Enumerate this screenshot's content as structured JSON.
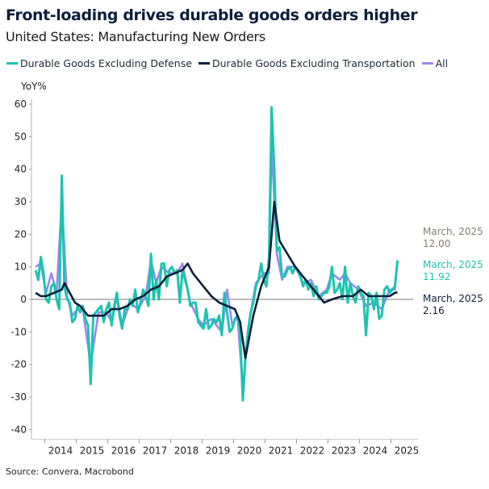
{
  "title": "Front-loading drives durable goods orders higher",
  "subtitle": "United States: Manufacturing New Orders",
  "source": "Source: Convera, Macrobond",
  "chart_data": {
    "type": "line",
    "ylabel": "YoY%",
    "ylim": [
      -40,
      60
    ],
    "yticks": [
      -40,
      -30,
      -20,
      -10,
      0,
      10,
      20,
      30,
      40,
      50,
      60
    ],
    "xticks": [
      "2014",
      "2015",
      "2016",
      "2017",
      "2018",
      "2019",
      "2020",
      "2021",
      "2022",
      "2023",
      "2024",
      "2025"
    ],
    "grid": false,
    "legend_position": "top-left",
    "series": [
      {
        "name": "Durable Goods Excluding Defense",
        "color": "#1cc4b0",
        "points": [
          [
            "2013-09",
            9
          ],
          [
            "2013-10",
            6
          ],
          [
            "2013-11",
            13
          ],
          [
            "2013-12",
            8
          ],
          [
            "2014-01",
            0
          ],
          [
            "2014-02",
            -1
          ],
          [
            "2014-03",
            4
          ],
          [
            "2014-04",
            5
          ],
          [
            "2014-05",
            0
          ],
          [
            "2014-06",
            -3
          ],
          [
            "2014-07",
            38
          ],
          [
            "2014-08",
            4
          ],
          [
            "2014-09",
            0
          ],
          [
            "2014-10",
            -1
          ],
          [
            "2014-11",
            -7
          ],
          [
            "2014-12",
            -6
          ],
          [
            "2015-01",
            -2
          ],
          [
            "2015-02",
            -4
          ],
          [
            "2015-03",
            -2
          ],
          [
            "2015-04",
            -6
          ],
          [
            "2015-05",
            -8
          ],
          [
            "2015-06",
            -26
          ],
          [
            "2015-07",
            -5
          ],
          [
            "2015-08",
            -4
          ],
          [
            "2015-09",
            -3
          ],
          [
            "2015-10",
            -2
          ],
          [
            "2015-11",
            -7
          ],
          [
            "2015-12",
            -3
          ],
          [
            "2016-01",
            -1
          ],
          [
            "2016-02",
            -8
          ],
          [
            "2016-03",
            -2
          ],
          [
            "2016-04",
            2
          ],
          [
            "2016-05",
            -5
          ],
          [
            "2016-06",
            -9
          ],
          [
            "2016-07",
            -3
          ],
          [
            "2016-08",
            -3
          ],
          [
            "2016-09",
            0
          ],
          [
            "2016-10",
            -2
          ],
          [
            "2016-11",
            3
          ],
          [
            "2016-12",
            -4
          ],
          [
            "2017-01",
            -1
          ],
          [
            "2017-02",
            3
          ],
          [
            "2017-03",
            1
          ],
          [
            "2017-04",
            -2
          ],
          [
            "2017-05",
            14
          ],
          [
            "2017-06",
            0
          ],
          [
            "2017-07",
            6
          ],
          [
            "2017-08",
            0
          ],
          [
            "2017-09",
            11
          ],
          [
            "2017-10",
            11
          ],
          [
            "2017-11",
            4
          ],
          [
            "2017-12",
            9
          ],
          [
            "2018-01",
            10
          ],
          [
            "2018-02",
            8
          ],
          [
            "2018-03",
            9
          ],
          [
            "2018-04",
            -1
          ],
          [
            "2018-05",
            9
          ],
          [
            "2018-06",
            6
          ],
          [
            "2018-07",
            3
          ],
          [
            "2018-08",
            -2
          ],
          [
            "2018-09",
            -1
          ],
          [
            "2018-10",
            -1
          ],
          [
            "2018-11",
            -7
          ],
          [
            "2018-12",
            -8
          ],
          [
            "2019-01",
            -9
          ],
          [
            "2019-02",
            -3
          ],
          [
            "2019-03",
            -9
          ],
          [
            "2019-04",
            -8
          ],
          [
            "2019-05",
            -6
          ],
          [
            "2019-06",
            -7
          ],
          [
            "2019-07",
            -5
          ],
          [
            "2019-08",
            -11
          ],
          [
            "2019-09",
            2
          ],
          [
            "2019-10",
            -4
          ],
          [
            "2019-11",
            -10
          ],
          [
            "2019-12",
            -9
          ],
          [
            "2020-01",
            -6
          ],
          [
            "2020-02",
            -5
          ],
          [
            "2020-03",
            -10
          ],
          [
            "2020-04",
            -31
          ],
          [
            "2020-05",
            -18
          ],
          [
            "2020-06",
            -10
          ],
          [
            "2020-07",
            -4
          ],
          [
            "2020-08",
            -1
          ],
          [
            "2020-09",
            4
          ],
          [
            "2020-10",
            6
          ],
          [
            "2020-11",
            11
          ],
          [
            "2020-12",
            6
          ],
          [
            "2021-01",
            4
          ],
          [
            "2021-02",
            13
          ],
          [
            "2021-03",
            59
          ],
          [
            "2021-04",
            40
          ],
          [
            "2021-05",
            15
          ],
          [
            "2021-06",
            16
          ],
          [
            "2021-07",
            7
          ],
          [
            "2021-08",
            7
          ],
          [
            "2021-09",
            9
          ],
          [
            "2021-10",
            10
          ],
          [
            "2021-11",
            8
          ],
          [
            "2021-12",
            10
          ],
          [
            "2022-01",
            9
          ],
          [
            "2022-02",
            7
          ],
          [
            "2022-03",
            4
          ],
          [
            "2022-04",
            6
          ],
          [
            "2022-05",
            3
          ],
          [
            "2022-06",
            5
          ],
          [
            "2022-07",
            1
          ],
          [
            "2022-08",
            4
          ],
          [
            "2022-09",
            0
          ],
          [
            "2022-10",
            1
          ],
          [
            "2022-11",
            2
          ],
          [
            "2022-12",
            2
          ],
          [
            "2023-01",
            4
          ],
          [
            "2023-02",
            10
          ],
          [
            "2023-03",
            2
          ],
          [
            "2023-04",
            3
          ],
          [
            "2023-05",
            5
          ],
          [
            "2023-06",
            0
          ],
          [
            "2023-07",
            10
          ],
          [
            "2023-08",
            -1
          ],
          [
            "2023-09",
            5
          ],
          [
            "2023-10",
            1
          ],
          [
            "2023-11",
            -1
          ],
          [
            "2023-12",
            4
          ],
          [
            "2024-01",
            2
          ],
          [
            "2024-02",
            1
          ],
          [
            "2024-03",
            -11
          ],
          [
            "2024-04",
            2
          ],
          [
            "2024-05",
            1
          ],
          [
            "2024-06",
            -3
          ],
          [
            "2024-07",
            2
          ],
          [
            "2024-08",
            -6
          ],
          [
            "2024-09",
            -5
          ],
          [
            "2024-10",
            3
          ],
          [
            "2024-11",
            4
          ],
          [
            "2024-12",
            2
          ],
          [
            "2025-01",
            3
          ],
          [
            "2025-02",
            4
          ],
          [
            "2025-03",
            11.92
          ]
        ]
      },
      {
        "name": "Durable Goods Excluding Transportation",
        "color": "#0b1f3a",
        "points": [
          [
            "2013-09",
            2
          ],
          [
            "2013-11",
            1
          ],
          [
            "2014-01",
            1
          ],
          [
            "2014-04",
            2
          ],
          [
            "2014-07",
            3
          ],
          [
            "2014-08",
            5
          ],
          [
            "2014-10",
            2
          ],
          [
            "2014-12",
            -1
          ],
          [
            "2015-02",
            -2
          ],
          [
            "2015-05",
            -5
          ],
          [
            "2015-08",
            -5
          ],
          [
            "2015-11",
            -5
          ],
          [
            "2016-02",
            -3
          ],
          [
            "2016-05",
            -3
          ],
          [
            "2016-08",
            -2
          ],
          [
            "2016-11",
            0
          ],
          [
            "2017-02",
            1
          ],
          [
            "2017-05",
            3
          ],
          [
            "2017-08",
            4
          ],
          [
            "2017-11",
            7
          ],
          [
            "2018-02",
            8
          ],
          [
            "2018-05",
            9
          ],
          [
            "2018-07",
            11
          ],
          [
            "2018-09",
            8
          ],
          [
            "2018-11",
            6
          ],
          [
            "2019-01",
            4
          ],
          [
            "2019-04",
            1
          ],
          [
            "2019-07",
            -1
          ],
          [
            "2019-10",
            -2
          ],
          [
            "2020-01",
            -3
          ],
          [
            "2020-03",
            -7
          ],
          [
            "2020-05",
            -18
          ],
          [
            "2020-08",
            -5
          ],
          [
            "2020-11",
            4
          ],
          [
            "2021-02",
            10
          ],
          [
            "2021-04",
            30
          ],
          [
            "2021-06",
            18
          ],
          [
            "2021-09",
            14
          ],
          [
            "2021-12",
            10
          ],
          [
            "2022-03",
            7
          ],
          [
            "2022-06",
            4
          ],
          [
            "2022-09",
            1
          ],
          [
            "2022-11",
            -1
          ],
          [
            "2023-02",
            0
          ],
          [
            "2023-06",
            1
          ],
          [
            "2023-10",
            1
          ],
          [
            "2024-01",
            3
          ],
          [
            "2024-04",
            1
          ],
          [
            "2024-08",
            1
          ],
          [
            "2024-12",
            1
          ],
          [
            "2025-02",
            2
          ],
          [
            "2025-03",
            2.16
          ]
        ]
      },
      {
        "name": "All",
        "color": "#9a88f2",
        "points": [
          [
            "2013-09",
            10
          ],
          [
            "2013-11",
            11
          ],
          [
            "2014-01",
            2
          ],
          [
            "2014-03",
            8
          ],
          [
            "2014-05",
            2
          ],
          [
            "2014-07",
            30
          ],
          [
            "2014-09",
            1
          ],
          [
            "2014-11",
            -5
          ],
          [
            "2015-01",
            -3
          ],
          [
            "2015-03",
            -3
          ],
          [
            "2015-06",
            -20
          ],
          [
            "2015-09",
            -4
          ],
          [
            "2015-12",
            -4
          ],
          [
            "2016-02",
            -7
          ],
          [
            "2016-04",
            1
          ],
          [
            "2016-06",
            -8
          ],
          [
            "2016-09",
            -1
          ],
          [
            "2016-12",
            -3
          ],
          [
            "2017-03",
            1
          ],
          [
            "2017-05",
            12
          ],
          [
            "2017-07",
            5
          ],
          [
            "2017-09",
            10
          ],
          [
            "2017-12",
            8
          ],
          [
            "2018-03",
            8
          ],
          [
            "2018-05",
            11
          ],
          [
            "2018-08",
            -1
          ],
          [
            "2018-11",
            -6
          ],
          [
            "2019-01",
            -8
          ],
          [
            "2019-04",
            -6
          ],
          [
            "2019-08",
            -10
          ],
          [
            "2019-10",
            3
          ],
          [
            "2019-12",
            -8
          ],
          [
            "2020-02",
            -5
          ],
          [
            "2020-04",
            -28
          ],
          [
            "2020-06",
            -9
          ],
          [
            "2020-09",
            5
          ],
          [
            "2020-12",
            8
          ],
          [
            "2021-02",
            8
          ],
          [
            "2021-03",
            48
          ],
          [
            "2021-05",
            14
          ],
          [
            "2021-07",
            6
          ],
          [
            "2021-09",
            10
          ],
          [
            "2021-12",
            10
          ],
          [
            "2022-03",
            5
          ],
          [
            "2022-06",
            6
          ],
          [
            "2022-09",
            1
          ],
          [
            "2022-12",
            3
          ],
          [
            "2023-02",
            8
          ],
          [
            "2023-05",
            6
          ],
          [
            "2023-07",
            8
          ],
          [
            "2023-09",
            5
          ],
          [
            "2023-12",
            3
          ],
          [
            "2024-03",
            -2
          ],
          [
            "2024-06",
            -1
          ],
          [
            "2024-09",
            -3
          ],
          [
            "2024-12",
            3
          ],
          [
            "2025-02",
            3
          ],
          [
            "2025-03",
            12.0
          ]
        ]
      }
    ],
    "end_labels": [
      {
        "series": "All",
        "date": "March, 2025",
        "value": "12.00",
        "color": "#8a7a70"
      },
      {
        "series": "Durable Goods Excluding Defense",
        "date": "March, 2025",
        "value": "11.92",
        "color": "#1cc4b0"
      },
      {
        "series": "Durable Goods Excluding Transportation",
        "date": "March, 2025",
        "value": "2.16",
        "color": "#0b1f3a"
      }
    ]
  }
}
